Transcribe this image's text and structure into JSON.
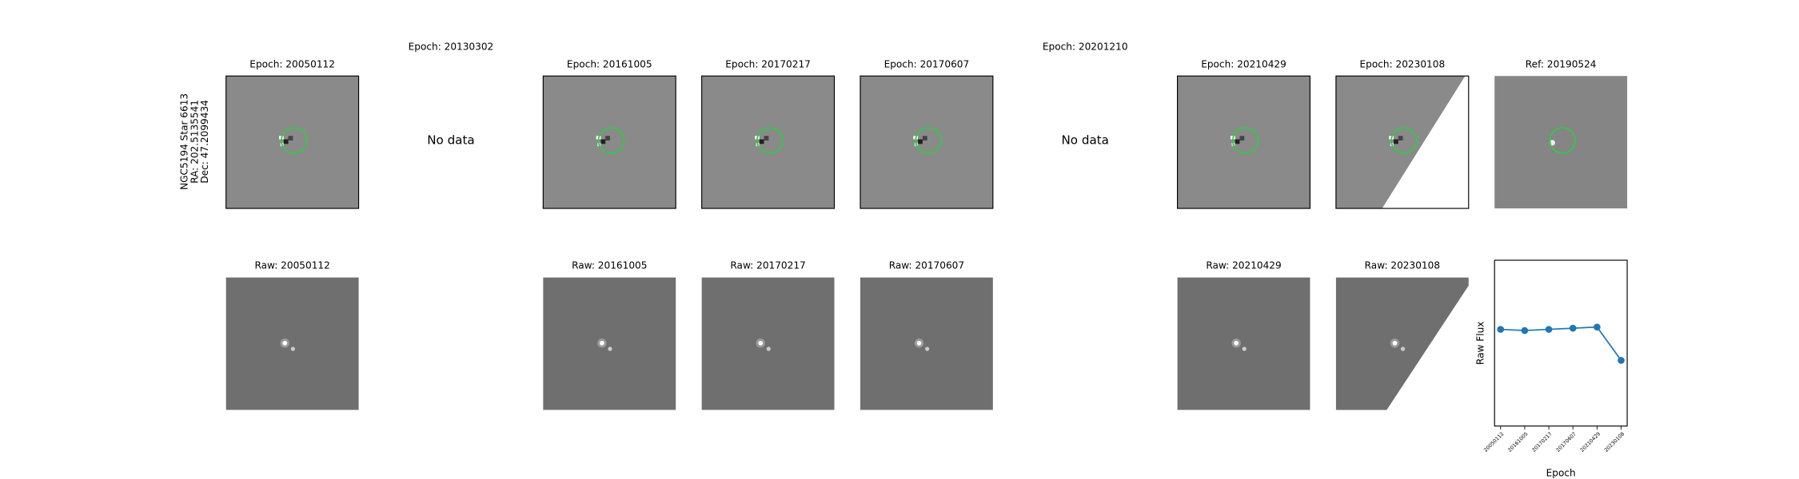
{
  "figure": {
    "side_label": [
      "NGC5194 Star 6613",
      "RA: 202.5135541",
      "Dec: 47.2099434"
    ],
    "top_row": [
      {
        "title": "Epoch: 20050112"
      },
      {
        "title": "Epoch: 20130302",
        "message": "No data"
      },
      {
        "title": "Epoch: 20161005"
      },
      {
        "title": "Epoch: 20170217"
      },
      {
        "title": "Epoch: 20170607"
      },
      {
        "title": "Epoch: 20201210",
        "message": "No data"
      },
      {
        "title": "Epoch: 20210429"
      },
      {
        "title": "Epoch: 20230108"
      },
      {
        "title": "Ref: 20190524"
      }
    ],
    "bottom_row": [
      "Raw: 20050112",
      "Raw: 20161005",
      "Raw: 20170217",
      "Raw: 20170607",
      "Raw: 20210429",
      "Raw: 20230108"
    ]
  },
  "chart_data": {
    "type": "line",
    "ylabel": "Raw Flux",
    "xlabel": "Epoch",
    "color": "#1f77b4",
    "categories": [
      "20050112",
      "20161005",
      "20170217",
      "20170607",
      "20210429",
      "20230108"
    ],
    "values": [
      58.3,
      57.6,
      58.3,
      59.0,
      59.7,
      39.6
    ],
    "ylim": [
      0,
      100
    ]
  }
}
